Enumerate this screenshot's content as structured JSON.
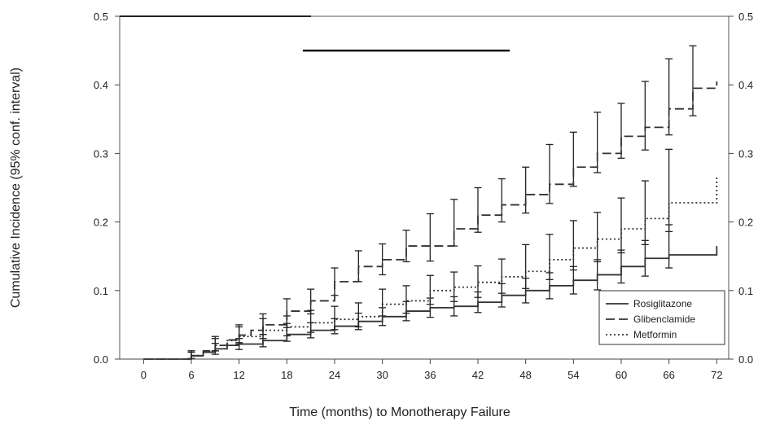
{
  "chart_data": {
    "type": "line",
    "title": "",
    "xlabel": "Time (months) to Monotherapy Failure",
    "ylabel": "Cumulative Incidence  (95% conf. interval)",
    "xlim": [
      -3,
      73.5
    ],
    "ylim": [
      0,
      0.5
    ],
    "xticks": [
      0,
      6,
      12,
      18,
      24,
      30,
      36,
      42,
      48,
      54,
      60,
      66,
      72
    ],
    "xtick_labels": [
      "0",
      "6",
      "12",
      "18",
      "24",
      "30",
      "36",
      "42",
      "48",
      "54",
      "60",
      "66",
      "72"
    ],
    "yticks": [
      0,
      0.1,
      0.2,
      0.3,
      0.4,
      0.5
    ],
    "ytick_labels": [
      "0.0",
      "0.1",
      "0.2",
      "0.3",
      "0.4",
      "0.5"
    ],
    "y2tick_labels": [
      "0.0",
      "0.1",
      "0.2",
      "0.3",
      "0.4",
      "0.5"
    ],
    "step": true,
    "grid": false,
    "legend_position": "bottom-right",
    "series": [
      {
        "name": "Rosiglitazone",
        "dash": "solid",
        "color": "#333333",
        "x": [
          0,
          6,
          7.5,
          9,
          10.5,
          12,
          15,
          18,
          21,
          24,
          27,
          30,
          33,
          36,
          39,
          42,
          45,
          48,
          51,
          54,
          57,
          60,
          63,
          66,
          72
        ],
        "y": [
          0,
          0.005,
          0.01,
          0.015,
          0.02,
          0.022,
          0.027,
          0.036,
          0.042,
          0.048,
          0.055,
          0.062,
          0.07,
          0.075,
          0.077,
          0.083,
          0.093,
          0.1,
          0.107,
          0.115,
          0.123,
          0.135,
          0.147,
          0.152,
          0.165
        ],
        "ci_x": [
          6,
          9,
          12,
          15,
          18,
          21,
          24,
          27,
          30,
          33,
          36,
          39,
          42,
          45,
          48,
          51,
          54,
          57,
          60,
          63,
          66
        ],
        "ci_low": [
          0.001,
          0.007,
          0.014,
          0.018,
          0.026,
          0.031,
          0.037,
          0.043,
          0.049,
          0.056,
          0.061,
          0.063,
          0.068,
          0.076,
          0.082,
          0.088,
          0.095,
          0.101,
          0.111,
          0.121,
          0.133
        ],
        "ci_high": [
          0.01,
          0.023,
          0.03,
          0.036,
          0.046,
          0.053,
          0.059,
          0.067,
          0.075,
          0.084,
          0.089,
          0.091,
          0.098,
          0.11,
          0.118,
          0.126,
          0.135,
          0.145,
          0.159,
          0.173,
          0.196
        ]
      },
      {
        "name": "Glibenclamide",
        "dash": "dash",
        "color": "#333333",
        "x": [
          0,
          6,
          7.5,
          9,
          10.5,
          12,
          13.5,
          15,
          18,
          21,
          24,
          27,
          30,
          33,
          36,
          39,
          42,
          45,
          48,
          51,
          54,
          57,
          60,
          63,
          66,
          69,
          72
        ],
        "y": [
          0,
          0.005,
          0.012,
          0.02,
          0.028,
          0.035,
          0.042,
          0.05,
          0.07,
          0.085,
          0.113,
          0.135,
          0.145,
          0.165,
          0.165,
          0.19,
          0.21,
          0.225,
          0.24,
          0.255,
          0.28,
          0.3,
          0.325,
          0.338,
          0.365,
          0.395,
          0.405
        ],
        "ci_x": [
          6,
          9,
          12,
          15,
          18,
          21,
          24,
          27,
          30,
          33,
          36,
          39,
          42,
          45,
          48,
          51,
          54,
          57,
          60,
          63,
          66,
          69
        ],
        "ci_low": [
          0.001,
          0.012,
          0.024,
          0.036,
          0.052,
          0.066,
          0.093,
          0.113,
          0.123,
          0.142,
          0.143,
          0.165,
          0.185,
          0.2,
          0.213,
          0.227,
          0.252,
          0.272,
          0.293,
          0.305,
          0.327,
          0.355
        ],
        "ci_high": [
          0.012,
          0.03,
          0.05,
          0.066,
          0.088,
          0.102,
          0.133,
          0.158,
          0.168,
          0.188,
          0.212,
          0.233,
          0.25,
          0.263,
          0.28,
          0.313,
          0.331,
          0.36,
          0.373,
          0.405,
          0.438,
          0.457
        ]
      },
      {
        "name": "Metformin",
        "dash": "dot",
        "color": "#333333",
        "x": [
          0,
          6,
          7.5,
          9,
          10.5,
          12,
          15,
          18,
          21,
          24,
          27,
          30,
          33,
          36,
          39,
          42,
          45,
          48,
          51,
          54,
          57,
          60,
          63,
          66,
          72
        ],
        "y": [
          0,
          0.005,
          0.012,
          0.02,
          0.027,
          0.033,
          0.042,
          0.047,
          0.053,
          0.058,
          0.062,
          0.08,
          0.085,
          0.1,
          0.105,
          0.112,
          0.12,
          0.128,
          0.145,
          0.162,
          0.175,
          0.19,
          0.205,
          0.228,
          0.265
        ],
        "ci_x": [
          6,
          9,
          12,
          15,
          18,
          21,
          24,
          27,
          30,
          33,
          36,
          39,
          42,
          45,
          48,
          51,
          54,
          57,
          60,
          63,
          66
        ],
        "ci_low": [
          0.001,
          0.012,
          0.022,
          0.03,
          0.034,
          0.039,
          0.043,
          0.047,
          0.063,
          0.067,
          0.08,
          0.084,
          0.09,
          0.096,
          0.103,
          0.116,
          0.13,
          0.142,
          0.155,
          0.167,
          0.186
        ],
        "ci_high": [
          0.012,
          0.033,
          0.047,
          0.059,
          0.063,
          0.071,
          0.077,
          0.082,
          0.102,
          0.107,
          0.122,
          0.127,
          0.136,
          0.146,
          0.167,
          0.182,
          0.202,
          0.214,
          0.235,
          0.26,
          0.306
        ]
      }
    ],
    "annotation_bar": {
      "x_start": 20,
      "x_end": 46,
      "y": 0.45
    }
  }
}
